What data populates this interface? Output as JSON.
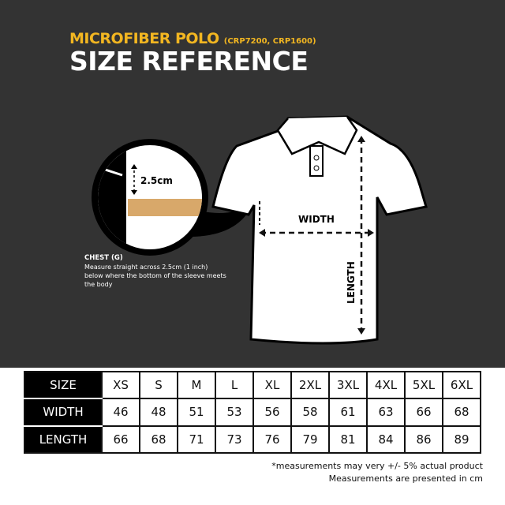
{
  "header": {
    "product": "MICROFIBER POLO",
    "codes": "(CRP7200, CRP1600)",
    "title": "SIZE REFERENCE"
  },
  "diagram": {
    "detail_measure": "2.5cm",
    "width_label": "WIDTH",
    "length_label": "LENGTH",
    "chest_title": "CHEST (G)",
    "chest_text": "Measure straight across 2.5cm (1 inch) below where the bottom of the sleeve meets the body"
  },
  "table": {
    "rows": [
      {
        "label": "SIZE",
        "values": [
          "XS",
          "S",
          "M",
          "L",
          "XL",
          "2XL",
          "3XL",
          "4XL",
          "5XL",
          "6XL"
        ]
      },
      {
        "label": "WIDTH",
        "values": [
          "46",
          "48",
          "51",
          "53",
          "56",
          "58",
          "61",
          "63",
          "66",
          "68"
        ]
      },
      {
        "label": "LENGTH",
        "values": [
          "66",
          "68",
          "71",
          "73",
          "76",
          "79",
          "81",
          "84",
          "86",
          "89"
        ]
      }
    ]
  },
  "notes": {
    "line1": "*measurements may very +/- 5% actual product",
    "line2": "Measurements are presented in cm"
  },
  "colors": {
    "background": "#333333",
    "accent": "#f2b621"
  }
}
